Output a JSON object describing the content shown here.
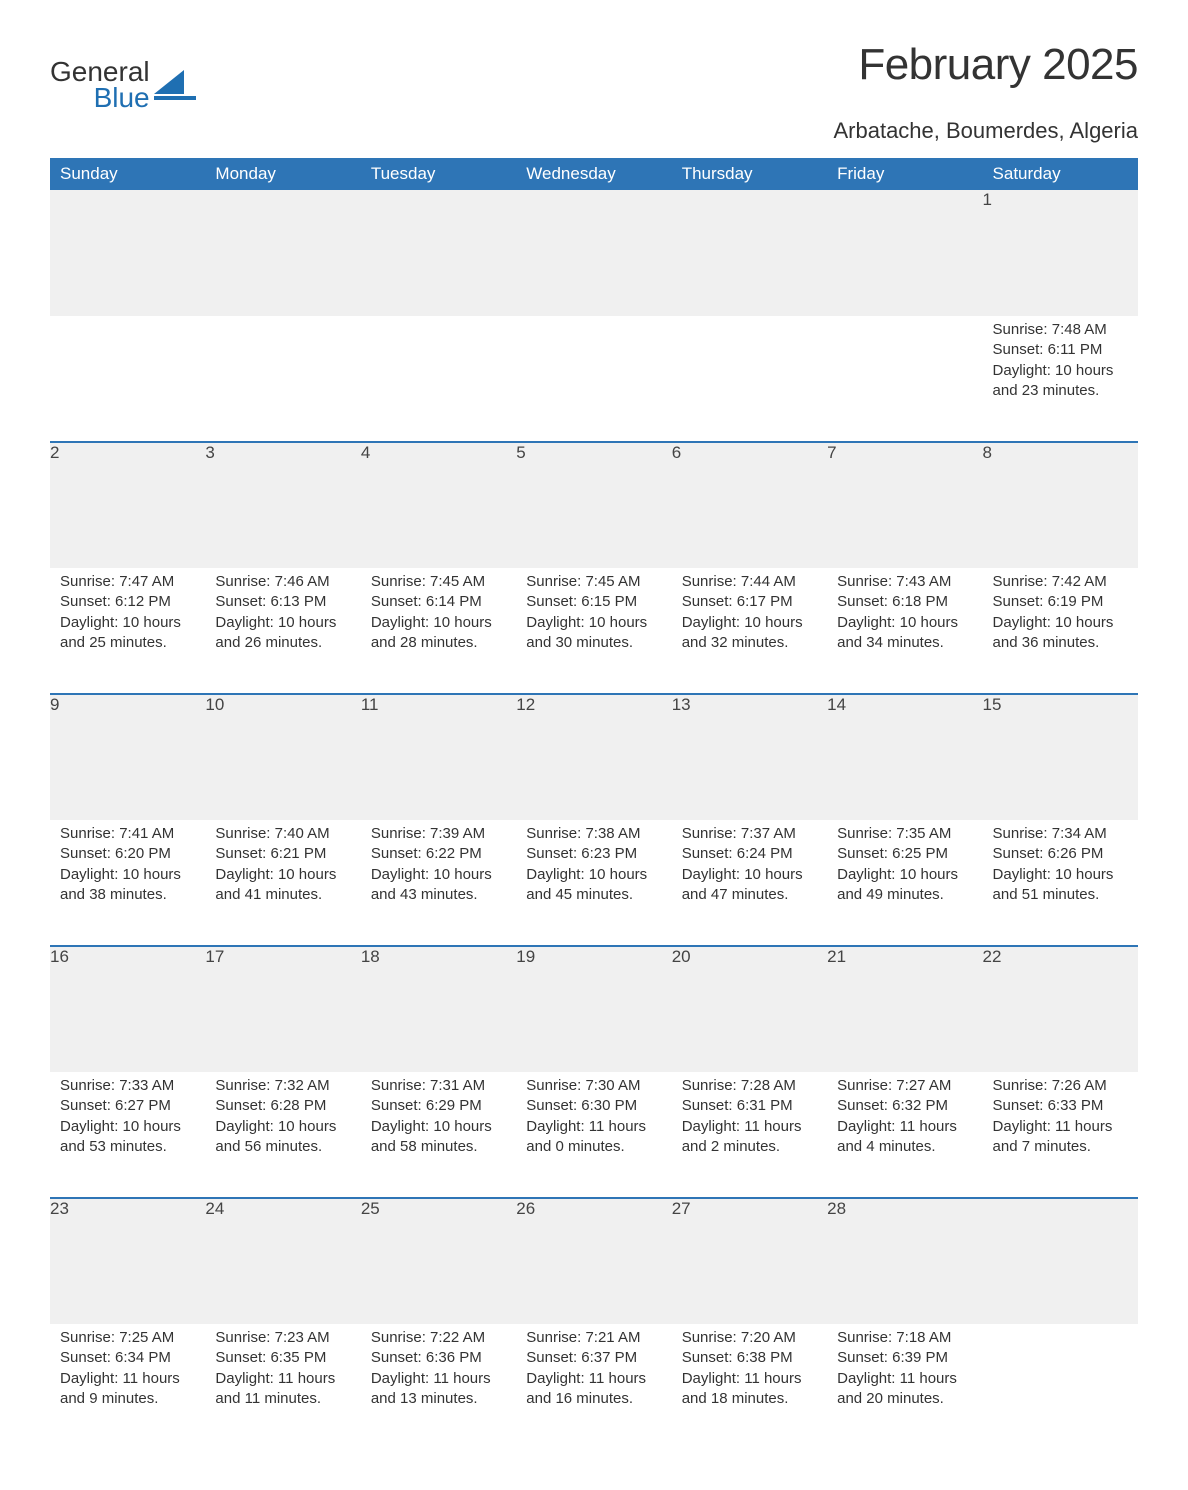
{
  "logo": {
    "word1": "General",
    "word2": "Blue",
    "shape_color": "#1f6fb2",
    "text_color": "#333333"
  },
  "title": "February 2025",
  "location": "Arbatache, Boumerdes, Algeria",
  "theme": {
    "header_bg": "#2e75b6",
    "header_fg": "#ffffff",
    "row_divider": "#2e75b6",
    "daynum_bg": "#f0f0f0",
    "body_bg": "#ffffff",
    "text_color": "#333333",
    "title_fontsize": 44,
    "location_fontsize": 22,
    "dayheader_fontsize": 17,
    "cell_fontsize": 15
  },
  "day_headers": [
    "Sunday",
    "Monday",
    "Tuesday",
    "Wednesday",
    "Thursday",
    "Friday",
    "Saturday"
  ],
  "weeks": [
    [
      null,
      null,
      null,
      null,
      null,
      null,
      {
        "n": "1",
        "sunrise": "Sunrise: 7:48 AM",
        "sunset": "Sunset: 6:11 PM",
        "daylight": "Daylight: 10 hours and 23 minutes."
      }
    ],
    [
      {
        "n": "2",
        "sunrise": "Sunrise: 7:47 AM",
        "sunset": "Sunset: 6:12 PM",
        "daylight": "Daylight: 10 hours and 25 minutes."
      },
      {
        "n": "3",
        "sunrise": "Sunrise: 7:46 AM",
        "sunset": "Sunset: 6:13 PM",
        "daylight": "Daylight: 10 hours and 26 minutes."
      },
      {
        "n": "4",
        "sunrise": "Sunrise: 7:45 AM",
        "sunset": "Sunset: 6:14 PM",
        "daylight": "Daylight: 10 hours and 28 minutes."
      },
      {
        "n": "5",
        "sunrise": "Sunrise: 7:45 AM",
        "sunset": "Sunset: 6:15 PM",
        "daylight": "Daylight: 10 hours and 30 minutes."
      },
      {
        "n": "6",
        "sunrise": "Sunrise: 7:44 AM",
        "sunset": "Sunset: 6:17 PM",
        "daylight": "Daylight: 10 hours and 32 minutes."
      },
      {
        "n": "7",
        "sunrise": "Sunrise: 7:43 AM",
        "sunset": "Sunset: 6:18 PM",
        "daylight": "Daylight: 10 hours and 34 minutes."
      },
      {
        "n": "8",
        "sunrise": "Sunrise: 7:42 AM",
        "sunset": "Sunset: 6:19 PM",
        "daylight": "Daylight: 10 hours and 36 minutes."
      }
    ],
    [
      {
        "n": "9",
        "sunrise": "Sunrise: 7:41 AM",
        "sunset": "Sunset: 6:20 PM",
        "daylight": "Daylight: 10 hours and 38 minutes."
      },
      {
        "n": "10",
        "sunrise": "Sunrise: 7:40 AM",
        "sunset": "Sunset: 6:21 PM",
        "daylight": "Daylight: 10 hours and 41 minutes."
      },
      {
        "n": "11",
        "sunrise": "Sunrise: 7:39 AM",
        "sunset": "Sunset: 6:22 PM",
        "daylight": "Daylight: 10 hours and 43 minutes."
      },
      {
        "n": "12",
        "sunrise": "Sunrise: 7:38 AM",
        "sunset": "Sunset: 6:23 PM",
        "daylight": "Daylight: 10 hours and 45 minutes."
      },
      {
        "n": "13",
        "sunrise": "Sunrise: 7:37 AM",
        "sunset": "Sunset: 6:24 PM",
        "daylight": "Daylight: 10 hours and 47 minutes."
      },
      {
        "n": "14",
        "sunrise": "Sunrise: 7:35 AM",
        "sunset": "Sunset: 6:25 PM",
        "daylight": "Daylight: 10 hours and 49 minutes."
      },
      {
        "n": "15",
        "sunrise": "Sunrise: 7:34 AM",
        "sunset": "Sunset: 6:26 PM",
        "daylight": "Daylight: 10 hours and 51 minutes."
      }
    ],
    [
      {
        "n": "16",
        "sunrise": "Sunrise: 7:33 AM",
        "sunset": "Sunset: 6:27 PM",
        "daylight": "Daylight: 10 hours and 53 minutes."
      },
      {
        "n": "17",
        "sunrise": "Sunrise: 7:32 AM",
        "sunset": "Sunset: 6:28 PM",
        "daylight": "Daylight: 10 hours and 56 minutes."
      },
      {
        "n": "18",
        "sunrise": "Sunrise: 7:31 AM",
        "sunset": "Sunset: 6:29 PM",
        "daylight": "Daylight: 10 hours and 58 minutes."
      },
      {
        "n": "19",
        "sunrise": "Sunrise: 7:30 AM",
        "sunset": "Sunset: 6:30 PM",
        "daylight": "Daylight: 11 hours and 0 minutes."
      },
      {
        "n": "20",
        "sunrise": "Sunrise: 7:28 AM",
        "sunset": "Sunset: 6:31 PM",
        "daylight": "Daylight: 11 hours and 2 minutes."
      },
      {
        "n": "21",
        "sunrise": "Sunrise: 7:27 AM",
        "sunset": "Sunset: 6:32 PM",
        "daylight": "Daylight: 11 hours and 4 minutes."
      },
      {
        "n": "22",
        "sunrise": "Sunrise: 7:26 AM",
        "sunset": "Sunset: 6:33 PM",
        "daylight": "Daylight: 11 hours and 7 minutes."
      }
    ],
    [
      {
        "n": "23",
        "sunrise": "Sunrise: 7:25 AM",
        "sunset": "Sunset: 6:34 PM",
        "daylight": "Daylight: 11 hours and 9 minutes."
      },
      {
        "n": "24",
        "sunrise": "Sunrise: 7:23 AM",
        "sunset": "Sunset: 6:35 PM",
        "daylight": "Daylight: 11 hours and 11 minutes."
      },
      {
        "n": "25",
        "sunrise": "Sunrise: 7:22 AM",
        "sunset": "Sunset: 6:36 PM",
        "daylight": "Daylight: 11 hours and 13 minutes."
      },
      {
        "n": "26",
        "sunrise": "Sunrise: 7:21 AM",
        "sunset": "Sunset: 6:37 PM",
        "daylight": "Daylight: 11 hours and 16 minutes."
      },
      {
        "n": "27",
        "sunrise": "Sunrise: 7:20 AM",
        "sunset": "Sunset: 6:38 PM",
        "daylight": "Daylight: 11 hours and 18 minutes."
      },
      {
        "n": "28",
        "sunrise": "Sunrise: 7:18 AM",
        "sunset": "Sunset: 6:39 PM",
        "daylight": "Daylight: 11 hours and 20 minutes."
      },
      null
    ]
  ]
}
